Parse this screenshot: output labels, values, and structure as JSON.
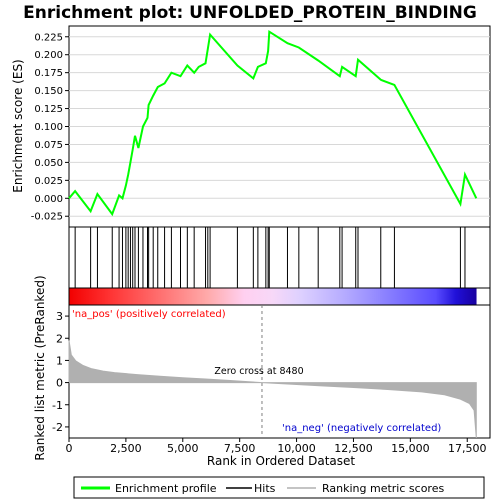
{
  "chart_data": {
    "type": "line",
    "title": "Enrichment plot: UNFOLDED_PROTEIN_BINDING",
    "x_axis": {
      "label": "Rank in Ordered Dataset",
      "ticks": [
        0,
        2500,
        5000,
        7500,
        10000,
        12500,
        15000,
        17500
      ],
      "tick_labels": [
        "0",
        "2,500",
        "5,000",
        "7,500",
        "10,000",
        "12,500",
        "15,000",
        "17,500"
      ],
      "range": [
        0,
        18500
      ]
    },
    "es_panel": {
      "ylabel": "Enrichment score (ES)",
      "ylim": [
        -0.04,
        0.24
      ],
      "ticks": [
        -0.025,
        0.0,
        0.025,
        0.05,
        0.075,
        0.1,
        0.125,
        0.15,
        0.175,
        0.2,
        0.225
      ],
      "tick_labels": [
        "-0.025",
        "0.000",
        "0.025",
        "0.050",
        "0.075",
        "0.100",
        "0.125",
        "0.150",
        "0.175",
        "0.200",
        "0.225"
      ],
      "grid": true,
      "color": "#00ff00"
    },
    "hits": [
      270,
      950,
      1250,
      1900,
      2200,
      2350,
      2500,
      2600,
      2700,
      2800,
      2900,
      3050,
      3250,
      3450,
      3500,
      3700,
      3900,
      4200,
      4500,
      4900,
      5200,
      5500,
      6000,
      6100,
      6200,
      7400,
      8100,
      8300,
      8650,
      8750,
      8800,
      9600,
      10100,
      10950,
      11900,
      12000,
      12600,
      12700,
      13700,
      14300,
      17200,
      17400
    ],
    "es_points": [
      [
        0,
        0.0
      ],
      [
        270,
        0.01
      ],
      [
        950,
        -0.018
      ],
      [
        1250,
        0.006
      ],
      [
        1900,
        -0.022
      ],
      [
        2200,
        0.004
      ],
      [
        2350,
        0.0
      ],
      [
        2500,
        0.018
      ],
      [
        2600,
        0.033
      ],
      [
        2700,
        0.05
      ],
      [
        2800,
        0.068
      ],
      [
        2900,
        0.087
      ],
      [
        3050,
        0.07
      ],
      [
        3250,
        0.1
      ],
      [
        3450,
        0.112
      ],
      [
        3500,
        0.13
      ],
      [
        3700,
        0.143
      ],
      [
        3900,
        0.155
      ],
      [
        4200,
        0.16
      ],
      [
        4500,
        0.175
      ],
      [
        4900,
        0.17
      ],
      [
        5200,
        0.185
      ],
      [
        5500,
        0.175
      ],
      [
        5700,
        0.183
      ],
      [
        6000,
        0.188
      ],
      [
        6100,
        0.208
      ],
      [
        6200,
        0.228
      ],
      [
        7400,
        0.185
      ],
      [
        8100,
        0.167
      ],
      [
        8300,
        0.183
      ],
      [
        8650,
        0.188
      ],
      [
        8750,
        0.205
      ],
      [
        8800,
        0.232
      ],
      [
        9600,
        0.216
      ],
      [
        10100,
        0.21
      ],
      [
        10950,
        0.192
      ],
      [
        11900,
        0.17
      ],
      [
        12000,
        0.183
      ],
      [
        12600,
        0.17
      ],
      [
        12700,
        0.193
      ],
      [
        13700,
        0.165
      ],
      [
        14300,
        0.158
      ],
      [
        17200,
        -0.008
      ],
      [
        17400,
        0.033
      ],
      [
        17900,
        0.0
      ]
    ],
    "metric_panel": {
      "ylabel": "Ranked list metric (PreRanked)",
      "ylim": [
        -2.5,
        3.5
      ],
      "ticks": [
        -2,
        -1,
        0,
        1,
        2,
        3
      ],
      "tick_labels": [
        "-2",
        "-1",
        "0",
        "1",
        "2",
        "3"
      ],
      "zero_cross": 8480,
      "zero_cross_label": "Zero cross at 8480",
      "pos_label": "'na_pos' (positively correlated)",
      "neg_label": "'na_neg' (negatively correlated)",
      "pos_color": "#ff0000",
      "neg_color": "#0000cd",
      "fill_color": "#b0b0b0",
      "metric_points": [
        [
          0,
          1.9
        ],
        [
          100,
          1.25
        ],
        [
          300,
          0.98
        ],
        [
          600,
          0.78
        ],
        [
          1000,
          0.62
        ],
        [
          1500,
          0.52
        ],
        [
          2000,
          0.45
        ],
        [
          3000,
          0.36
        ],
        [
          4000,
          0.29
        ],
        [
          5000,
          0.22
        ],
        [
          6000,
          0.16
        ],
        [
          7000,
          0.1
        ],
        [
          8000,
          0.03
        ],
        [
          8480,
          0.0
        ],
        [
          9500,
          -0.06
        ],
        [
          11000,
          -0.14
        ],
        [
          12500,
          -0.22
        ],
        [
          14000,
          -0.31
        ],
        [
          15500,
          -0.42
        ],
        [
          16500,
          -0.55
        ],
        [
          17200,
          -0.75
        ],
        [
          17600,
          -0.95
        ],
        [
          17800,
          -1.25
        ],
        [
          17900,
          -2.5
        ]
      ]
    },
    "colorbar_stops": [
      [
        0.0,
        "#f20000"
      ],
      [
        0.1,
        "#ff3333"
      ],
      [
        0.22,
        "#ff6e6e"
      ],
      [
        0.34,
        "#ffaaaa"
      ],
      [
        0.43,
        "#ffd0f0"
      ],
      [
        0.5,
        "#f7d8f8"
      ],
      [
        0.57,
        "#ddd0ff"
      ],
      [
        0.68,
        "#b4aaff"
      ],
      [
        0.78,
        "#8a80ff"
      ],
      [
        0.9,
        "#5a4cff"
      ],
      [
        0.95,
        "#2010d8"
      ],
      [
        1.0,
        "#1800a0"
      ]
    ],
    "legend": [
      {
        "label": "Enrichment profile",
        "color": "#00ff00"
      },
      {
        "label": "Hits",
        "color": "#000000"
      },
      {
        "label": "Ranking metric scores",
        "color": "#b0b0b0"
      }
    ],
    "n_genes": 17900
  }
}
